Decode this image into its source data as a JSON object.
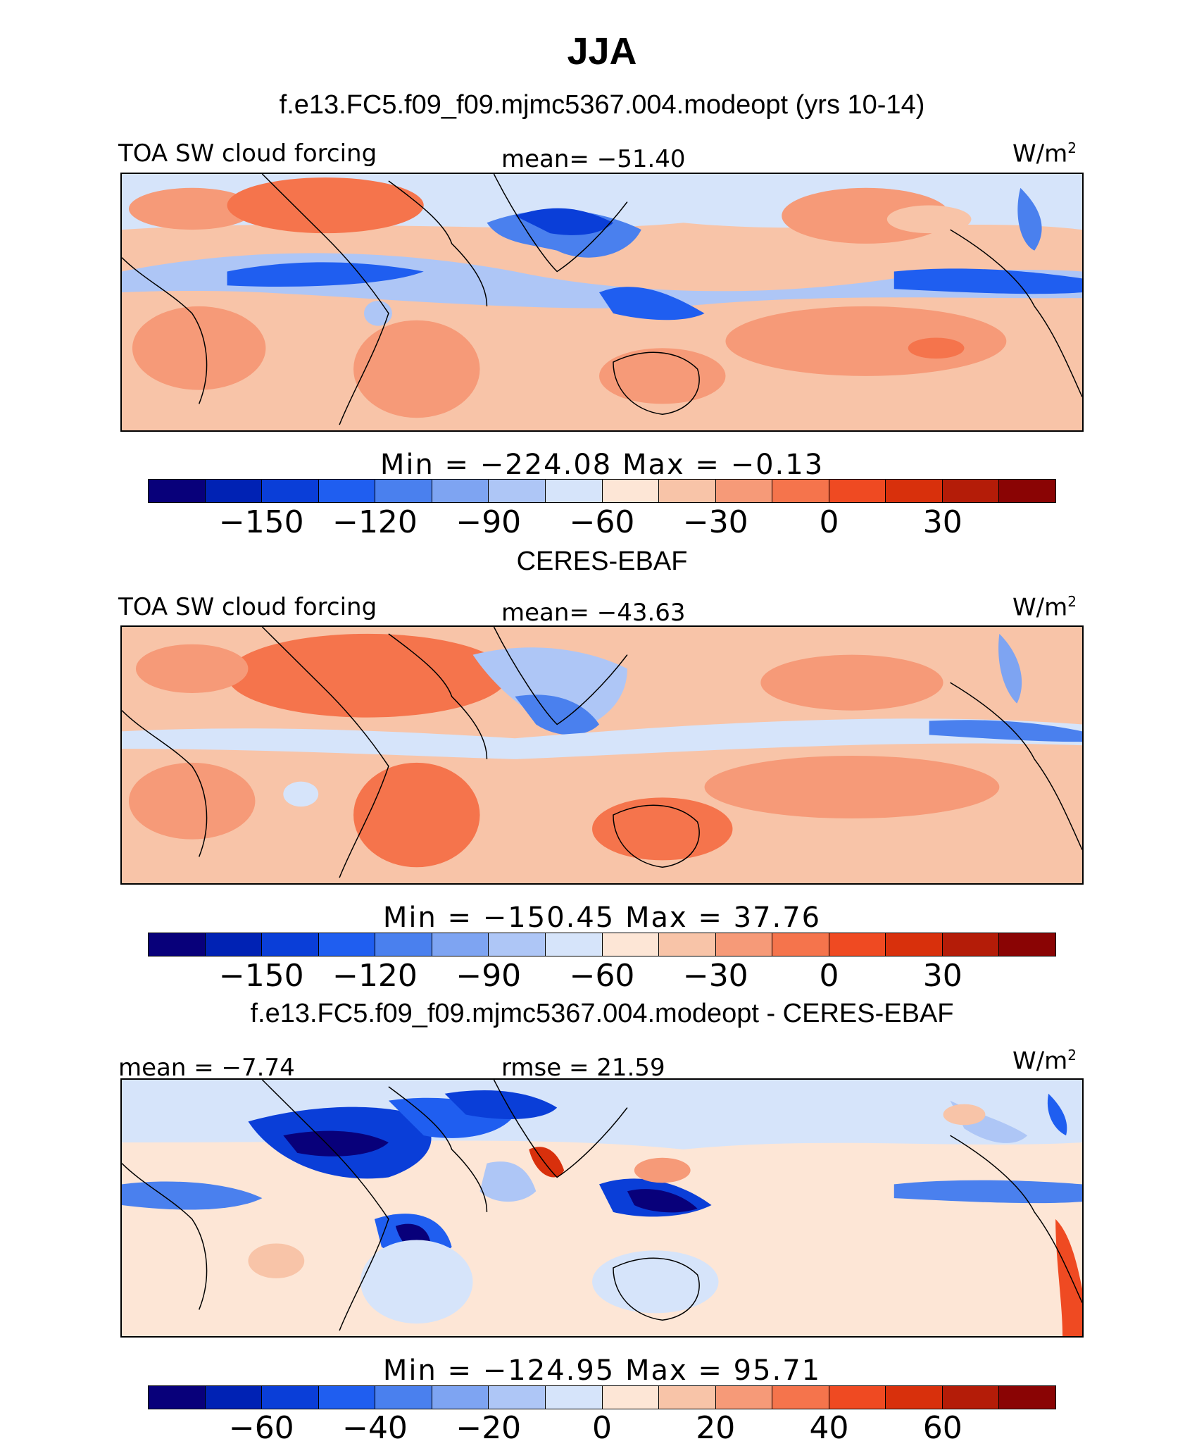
{
  "figure": {
    "season_title": "JJA",
    "panel_1_title": "f.e13.FC5.f09_f09.mjmc5367.004.modeopt (yrs 10-14)",
    "panel_2_title": "CERES-EBAF",
    "panel_3_title": "f.e13.FC5.f09_f09.mjmc5367.004.modeopt - CERES-EBAF"
  },
  "panels": [
    {
      "variable": "TOA SW cloud forcing",
      "stat_center": "mean= −51.40",
      "units_base": "W/m",
      "units_exp": "2",
      "minmax": "Min = −224.08 Max =  −0.13",
      "ticks": [
        "−150",
        "−120",
        "−90",
        "−60",
        "−30",
        "0",
        "30"
      ]
    },
    {
      "variable": "TOA SW cloud forcing",
      "stat_center": "mean= −43.63",
      "units_base": "W/m",
      "units_exp": "2",
      "minmax": "Min = −150.45 Max =  37.76",
      "ticks": [
        "−150",
        "−120",
        "−90",
        "−60",
        "−30",
        "0",
        "30"
      ]
    },
    {
      "variable": "mean =  −7.74",
      "stat_center": "rmse =  21.59",
      "units_base": "W/m",
      "units_exp": "2",
      "minmax": "Min = −124.95 Max =  95.71",
      "ticks": [
        "−60",
        "−40",
        "−20",
        "0",
        "20",
        "40",
        "60"
      ]
    }
  ],
  "colors": {
    "palette": [
      "#08007a",
      "#0022b4",
      "#0a3ed8",
      "#1f5ef0",
      "#4a80ee",
      "#7ea4f2",
      "#aec6f6",
      "#d6e4fa",
      "#fde6d6",
      "#f8c4a8",
      "#f69a78",
      "#f5744c",
      "#ef4a22",
      "#d8300c",
      "#b41c08",
      "#8a0404"
    ]
  }
}
